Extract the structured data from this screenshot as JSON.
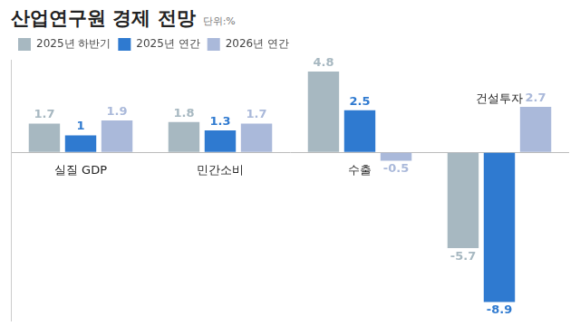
{
  "chart_data": {
    "type": "bar",
    "title": "산업연구원 경제 전망",
    "subtitle": "단위:%",
    "categories": [
      "실질 GDP",
      "민간소비",
      "수출",
      "건설투자"
    ],
    "series": [
      {
        "name": "2025년 하반기",
        "color": "#a7b8c1",
        "values": [
          1.7,
          1.8,
          4.8,
          -5.7
        ]
      },
      {
        "name": "2025년 연간",
        "color": "#2f7ad0",
        "values": [
          1.0,
          1.3,
          2.5,
          -8.9
        ]
      },
      {
        "name": "2026년 연간",
        "color": "#aab9da",
        "values": [
          1.9,
          1.7,
          -0.5,
          2.7
        ]
      }
    ],
    "ylim": [
      -10,
      5.5
    ],
    "grid": false,
    "legend": "top-left",
    "data_labels": true,
    "tick_labels": "x"
  }
}
